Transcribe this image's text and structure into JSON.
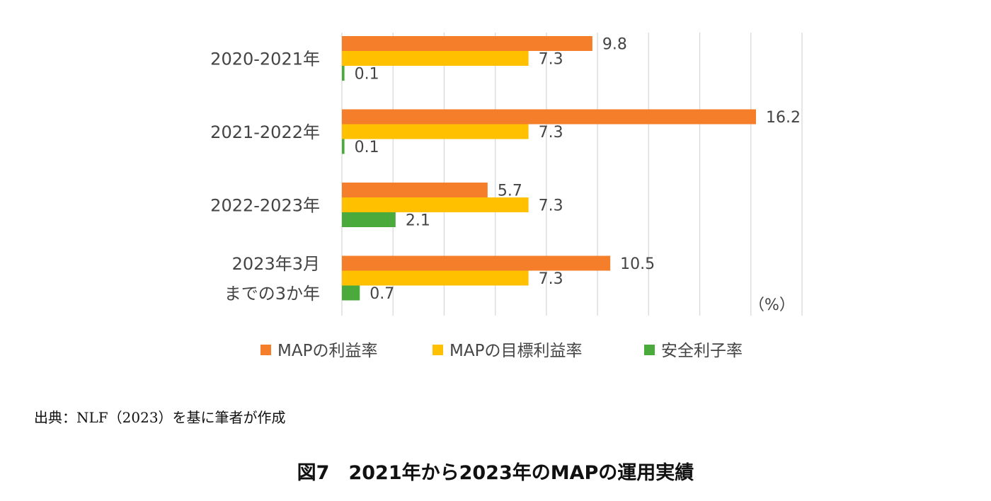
{
  "chart_data": {
    "type": "bar",
    "orientation": "horizontal",
    "categories": [
      [
        "2020-2021年"
      ],
      [
        "2021-2022年"
      ],
      [
        "2022-2023年"
      ],
      [
        "2023年3月",
        "までの3か年"
      ]
    ],
    "series": [
      {
        "name": "MAPの利益率",
        "color": "#f57e2a",
        "values": [
          9.8,
          16.2,
          5.7,
          10.5
        ],
        "labels": [
          "9.8",
          "16.2",
          "5.7",
          "10.5"
        ]
      },
      {
        "name": "MAPの目標利益率",
        "color": "#ffc000",
        "values": [
          7.3,
          7.3,
          7.3,
          7.3
        ],
        "labels": [
          "7.3",
          "7.3",
          "7.3",
          "7.3"
        ]
      },
      {
        "name": "安全利子率",
        "color": "#4aab3c",
        "values": [
          0.1,
          0.1,
          2.1,
          0.7
        ],
        "labels": [
          "0.1",
          "0.1",
          "2.1",
          "0.7"
        ]
      }
    ],
    "unit": "（%）",
    "xlim": [
      0,
      18
    ],
    "grid": true,
    "legend_position": "bottom"
  },
  "source_note": "出典：NLF（2023）を基に筆者が作成",
  "caption": "図7　2021年から2023年のMAPの運用実績"
}
